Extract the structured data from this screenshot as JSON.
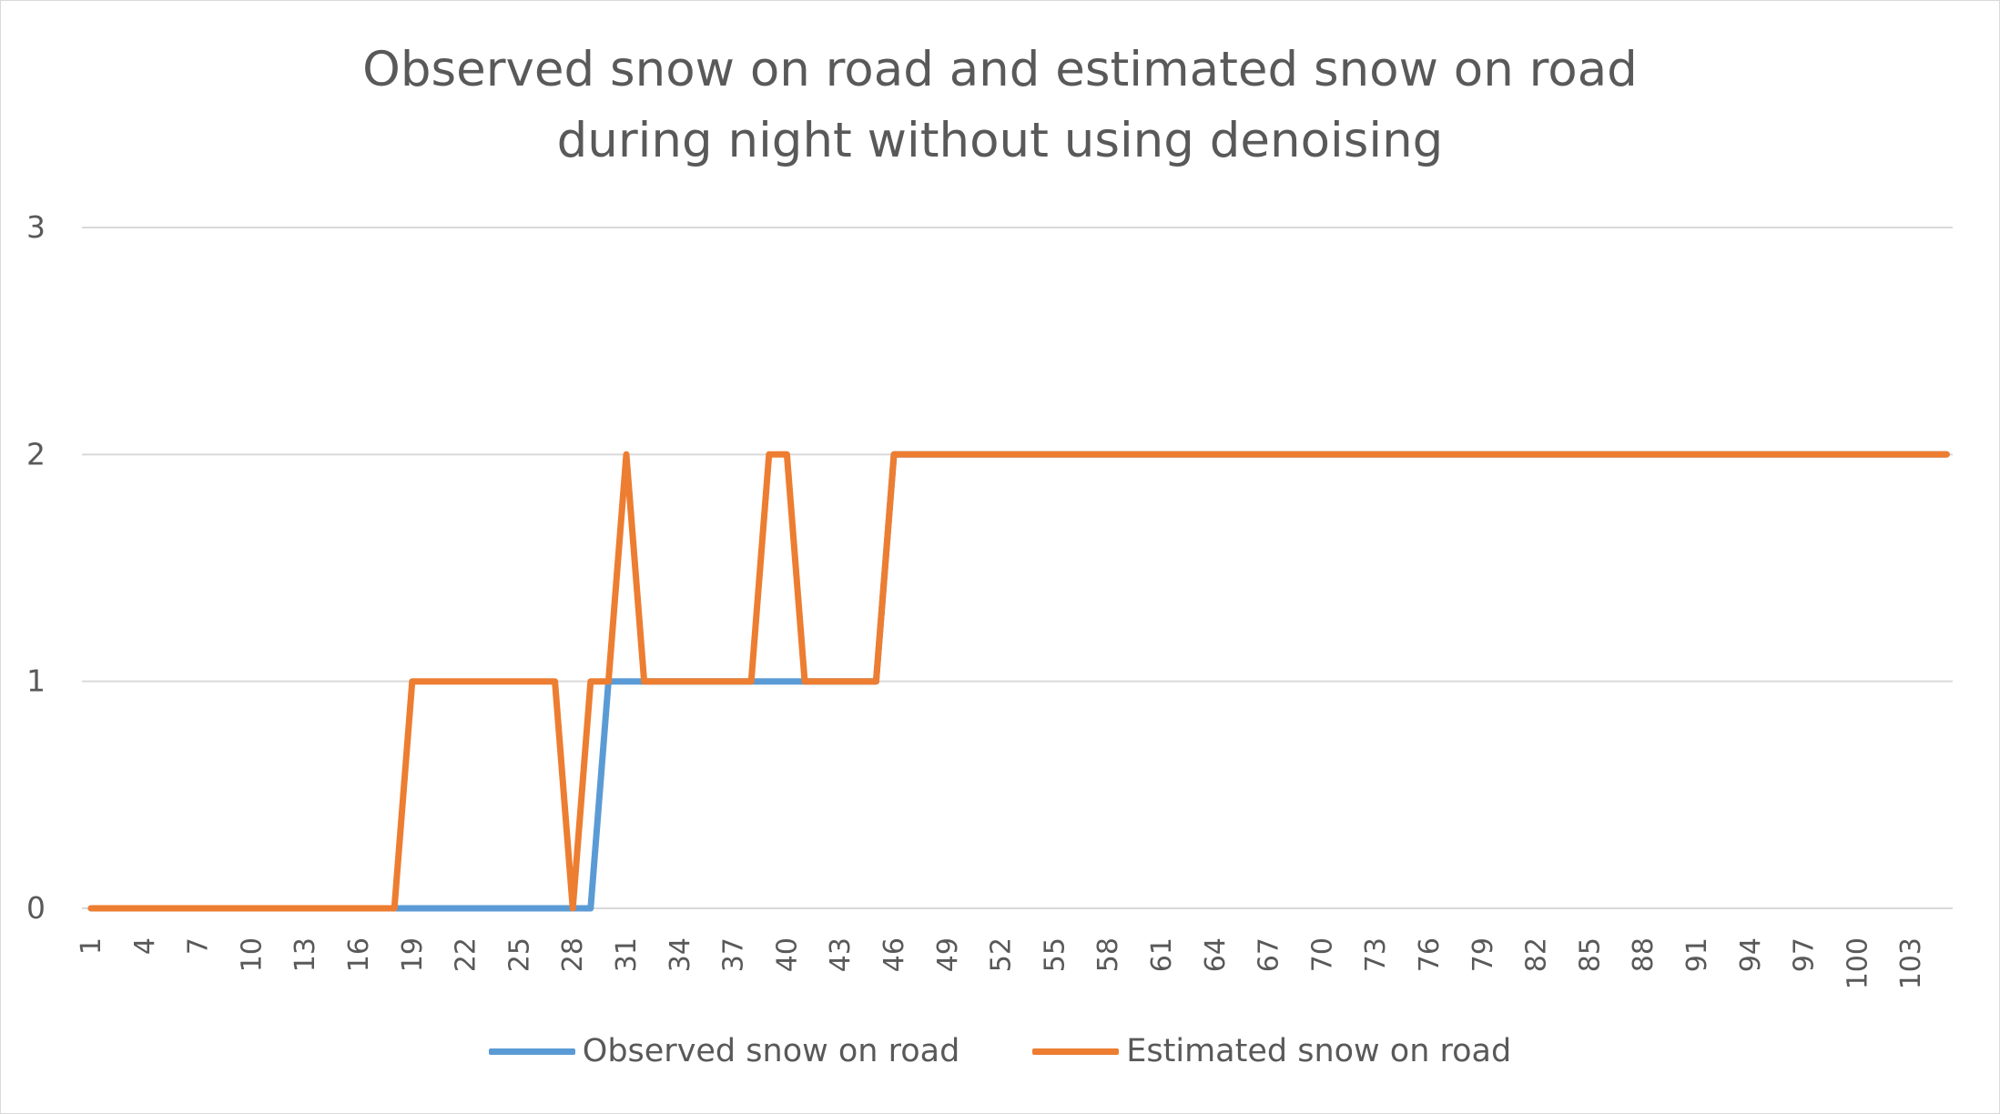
{
  "chart_data": {
    "type": "line",
    "title_lines": [
      "Observed snow on road and estimated snow on road",
      "during night without using denoising"
    ],
    "xlabel": "",
    "ylabel": "",
    "ylim": [
      0,
      3
    ],
    "y_ticks": [
      "0",
      "1",
      "2",
      "3"
    ],
    "x_start": 1,
    "x_end": 105,
    "x_tick_every": 3,
    "grid": "horizontal",
    "legend_position": "bottom",
    "series": [
      {
        "name": "Observed snow on road",
        "color": "#5b9bd5",
        "runs": [
          {
            "from": 1,
            "to": 29,
            "value": 0
          },
          {
            "from": 30,
            "to": 45,
            "value": 1
          },
          {
            "from": 46,
            "to": 105,
            "value": 2
          }
        ]
      },
      {
        "name": "Estimated snow on road",
        "color": "#ed7d31",
        "runs": [
          {
            "from": 1,
            "to": 18,
            "value": 0
          },
          {
            "from": 19,
            "to": 27,
            "value": 1
          },
          {
            "from": 28,
            "to": 28,
            "value": 0
          },
          {
            "from": 29,
            "to": 30,
            "value": 1
          },
          {
            "from": 31,
            "to": 31,
            "value": 2
          },
          {
            "from": 32,
            "to": 38,
            "value": 1
          },
          {
            "from": 39,
            "to": 40,
            "value": 2
          },
          {
            "from": 41,
            "to": 45,
            "value": 1
          },
          {
            "from": 46,
            "to": 105,
            "value": 2
          }
        ]
      }
    ]
  }
}
